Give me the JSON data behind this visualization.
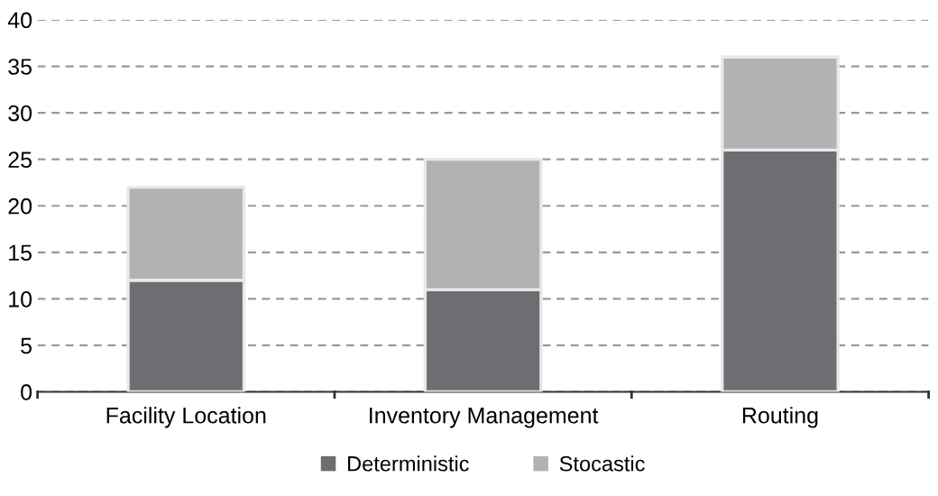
{
  "chart_data": {
    "type": "bar",
    "stacked": true,
    "categories": [
      "Facility Location",
      "Inventory Management",
      "Routing"
    ],
    "series": [
      {
        "name": "Deterministic",
        "color": "#6d6e71",
        "values": [
          12,
          11,
          26
        ]
      },
      {
        "name": "Stocastic",
        "color": "#b1b2b4",
        "values": [
          10,
          14,
          10
        ]
      }
    ],
    "ylim": [
      0,
      40
    ],
    "yticks": [
      0,
      5,
      10,
      15,
      20,
      25,
      30,
      35,
      40
    ],
    "grid": "y",
    "legend": "bottom"
  }
}
